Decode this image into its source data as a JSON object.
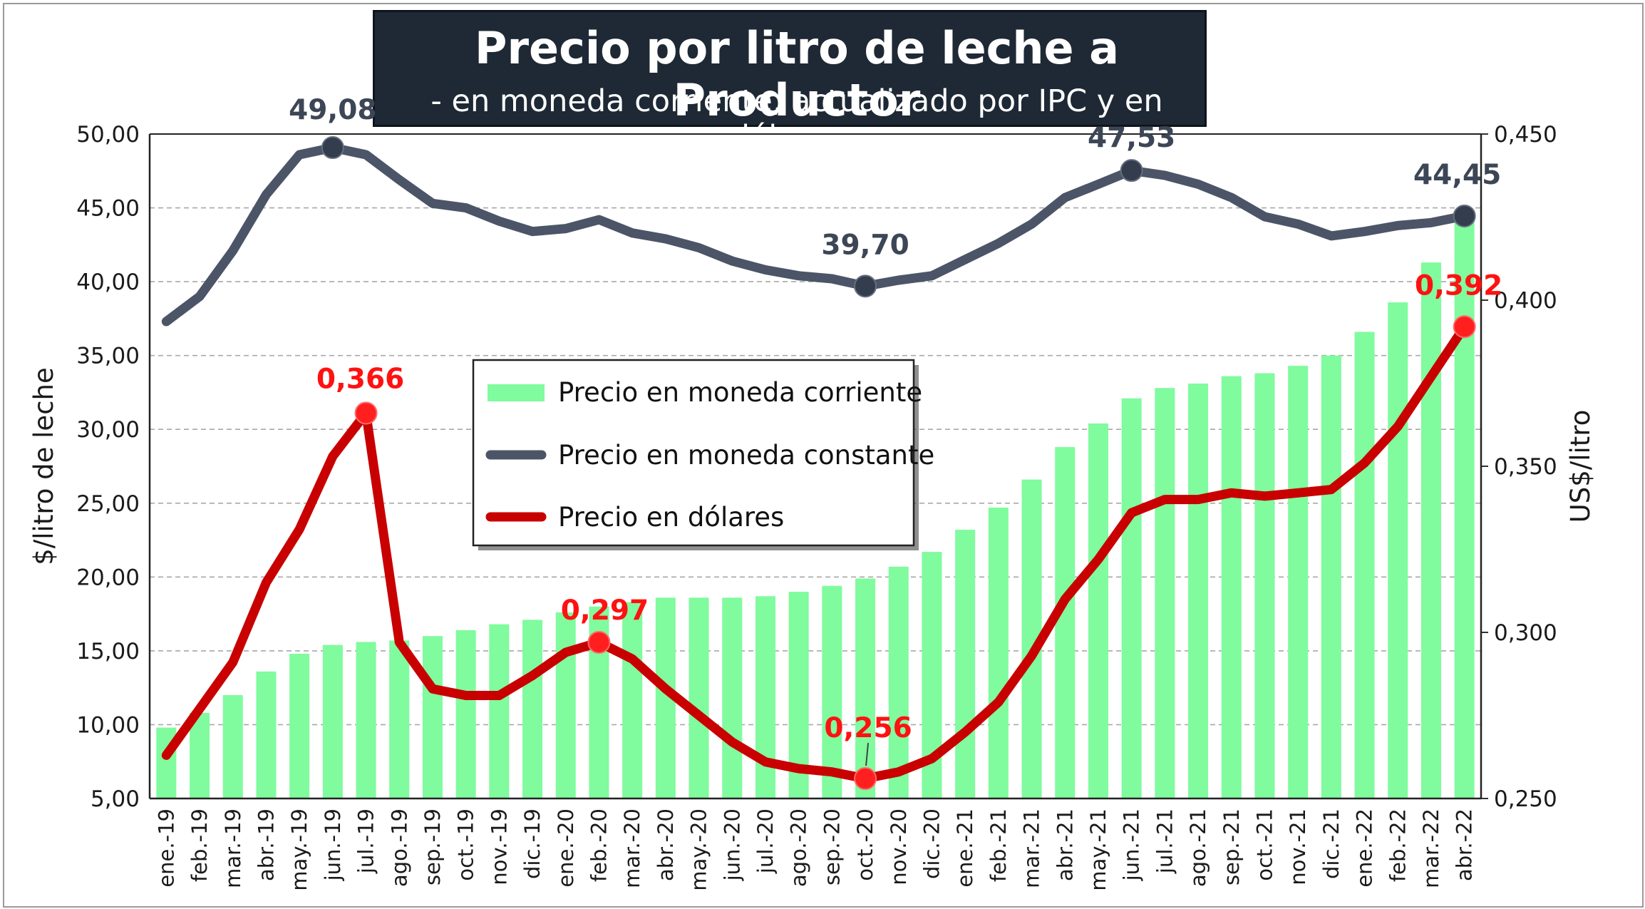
{
  "title": "Precio por litro de leche a Productor",
  "subtitle": "- en moneda corriente, actualizado por IPC y en dólares -",
  "colors": {
    "bars": "#80fb9e",
    "constant_line": "#4b5567",
    "constant_marker": "#333d4d",
    "dollar_line": "#c80000",
    "dollar_marker": "#ff1f1f",
    "label_red": "#ff1111"
  },
  "chart_data": {
    "type": "bar",
    "title": "Precio por litro de leche a Productor",
    "subtitle": "- en moneda corriente, actualizado por IPC y en dólares -",
    "categories": [
      "ene.-19",
      "feb.-19",
      "mar.-19",
      "abr.-19",
      "may.-19",
      "jun.-19",
      "jul.-19",
      "ago.-19",
      "sep.-19",
      "oct.-19",
      "nov.-19",
      "dic.-19",
      "ene.-20",
      "feb.-20",
      "mar.-20",
      "abr.-20",
      "may.-20",
      "jun.-20",
      "jul.-20",
      "ago.-20",
      "sep.-20",
      "oct.-20",
      "nov.-20",
      "dic.-20",
      "ene.-21",
      "feb.-21",
      "mar.-21",
      "abr.-21",
      "may.-21",
      "jun.-21",
      "jul.-21",
      "ago.-21",
      "sep.-21",
      "oct.-21",
      "nov.-21",
      "dic.-21",
      "ene.-22",
      "feb.-22",
      "mar.-22",
      "abr.-22"
    ],
    "ylabel": "$/litro de leche",
    "y2label": "US$/litro",
    "ylim": [
      5,
      50
    ],
    "yticks": [
      "5,00",
      "10,00",
      "15,00",
      "20,00",
      "25,00",
      "30,00",
      "35,00",
      "40,00",
      "45,00",
      "50,00"
    ],
    "y2lim": [
      0.25,
      0.45
    ],
    "y2ticks": [
      "0,250",
      "0,300",
      "0,350",
      "0,400",
      "0,450"
    ],
    "grid": true,
    "legend_position": "center-left",
    "series": [
      {
        "name": "Precio en moneda corriente",
        "type": "bar",
        "axis": "left",
        "values": [
          9.8,
          10.8,
          12.0,
          13.6,
          14.8,
          15.4,
          15.6,
          15.7,
          16.0,
          16.4,
          16.8,
          17.1,
          17.6,
          18.0,
          18.3,
          18.6,
          18.6,
          18.6,
          18.7,
          19.0,
          19.4,
          19.9,
          20.7,
          21.7,
          23.2,
          24.7,
          26.6,
          28.8,
          30.4,
          32.1,
          32.8,
          33.1,
          33.6,
          33.8,
          34.3,
          35.0,
          36.6,
          38.6,
          41.3,
          44.1
        ]
      },
      {
        "name": "Precio en moneda constante",
        "type": "line",
        "axis": "left",
        "values": [
          37.3,
          39.0,
          42.1,
          45.9,
          48.6,
          49.08,
          48.6,
          46.9,
          45.3,
          45.0,
          44.1,
          43.4,
          43.6,
          44.2,
          43.3,
          42.9,
          42.3,
          41.4,
          40.8,
          40.4,
          40.2,
          39.7,
          40.1,
          40.4,
          41.5,
          42.6,
          43.9,
          45.7,
          46.6,
          47.53,
          47.2,
          46.6,
          45.7,
          44.4,
          43.9,
          43.1,
          43.4,
          43.8,
          44.0,
          44.45
        ],
        "labels": [
          {
            "index": 5,
            "text": "49,08"
          },
          {
            "index": 21,
            "text": "39,70"
          },
          {
            "index": 29,
            "text": "47,53"
          },
          {
            "index": 39,
            "text": "44,45"
          }
        ]
      },
      {
        "name": "Precio en dólares",
        "type": "line",
        "axis": "right",
        "values": [
          0.263,
          0.277,
          0.291,
          0.315,
          0.331,
          0.353,
          0.366,
          0.297,
          0.283,
          0.281,
          0.281,
          0.287,
          0.294,
          0.297,
          0.292,
          0.283,
          0.275,
          0.267,
          0.261,
          0.259,
          0.258,
          0.256,
          0.258,
          0.262,
          0.27,
          0.279,
          0.293,
          0.31,
          0.322,
          0.336,
          0.34,
          0.34,
          0.342,
          0.341,
          0.342,
          0.343,
          0.351,
          0.362,
          0.377,
          0.392
        ],
        "labels": [
          {
            "index": 6,
            "text": "0,366"
          },
          {
            "index": 13,
            "text": "0,297"
          },
          {
            "index": 21,
            "text": "0,256"
          },
          {
            "index": 39,
            "text": "0,392"
          }
        ]
      }
    ]
  }
}
